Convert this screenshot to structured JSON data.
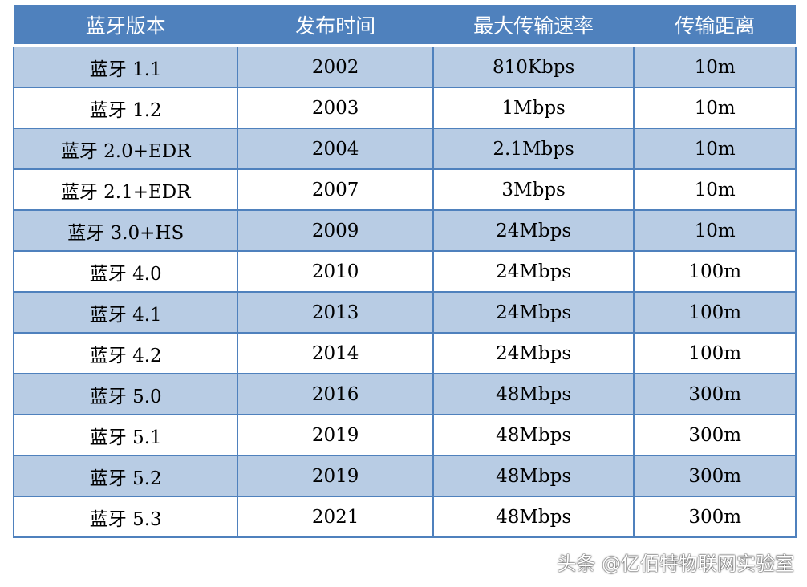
{
  "table": {
    "headers": [
      "蓝牙版本",
      "发布时间",
      "最大传输速率",
      "传输距离"
    ],
    "rows": [
      [
        "蓝牙 1.1",
        "2002",
        "810Kbps",
        "10m"
      ],
      [
        "蓝牙 1.2",
        "2003",
        "1Mbps",
        "10m"
      ],
      [
        "蓝牙 2.0+EDR",
        "2004",
        "2.1Mbps",
        "10m"
      ],
      [
        "蓝牙 2.1+EDR",
        "2007",
        "3Mbps",
        "10m"
      ],
      [
        "蓝牙 3.0+HS",
        "2009",
        "24Mbps",
        "10m"
      ],
      [
        "蓝牙 4.0",
        "2010",
        "24Mbps",
        "100m"
      ],
      [
        "蓝牙 4.1",
        "2013",
        "24Mbps",
        "100m"
      ],
      [
        "蓝牙 4.2",
        "2014",
        "24Mbps",
        "100m"
      ],
      [
        "蓝牙 5.0",
        "2016",
        "48Mbps",
        "300m"
      ],
      [
        "蓝牙 5.1",
        "2019",
        "48Mbps",
        "300m"
      ],
      [
        "蓝牙 5.2",
        "2019",
        "48Mbps",
        "300m"
      ],
      [
        "蓝牙 5.3",
        "2021",
        "48Mbps",
        "300m"
      ]
    ]
  },
  "watermark": "头条 @亿佰特物联网实验室",
  "colors": {
    "header": "#4f81bd",
    "band": "#b8cce4",
    "border": "#4f81bd"
  }
}
